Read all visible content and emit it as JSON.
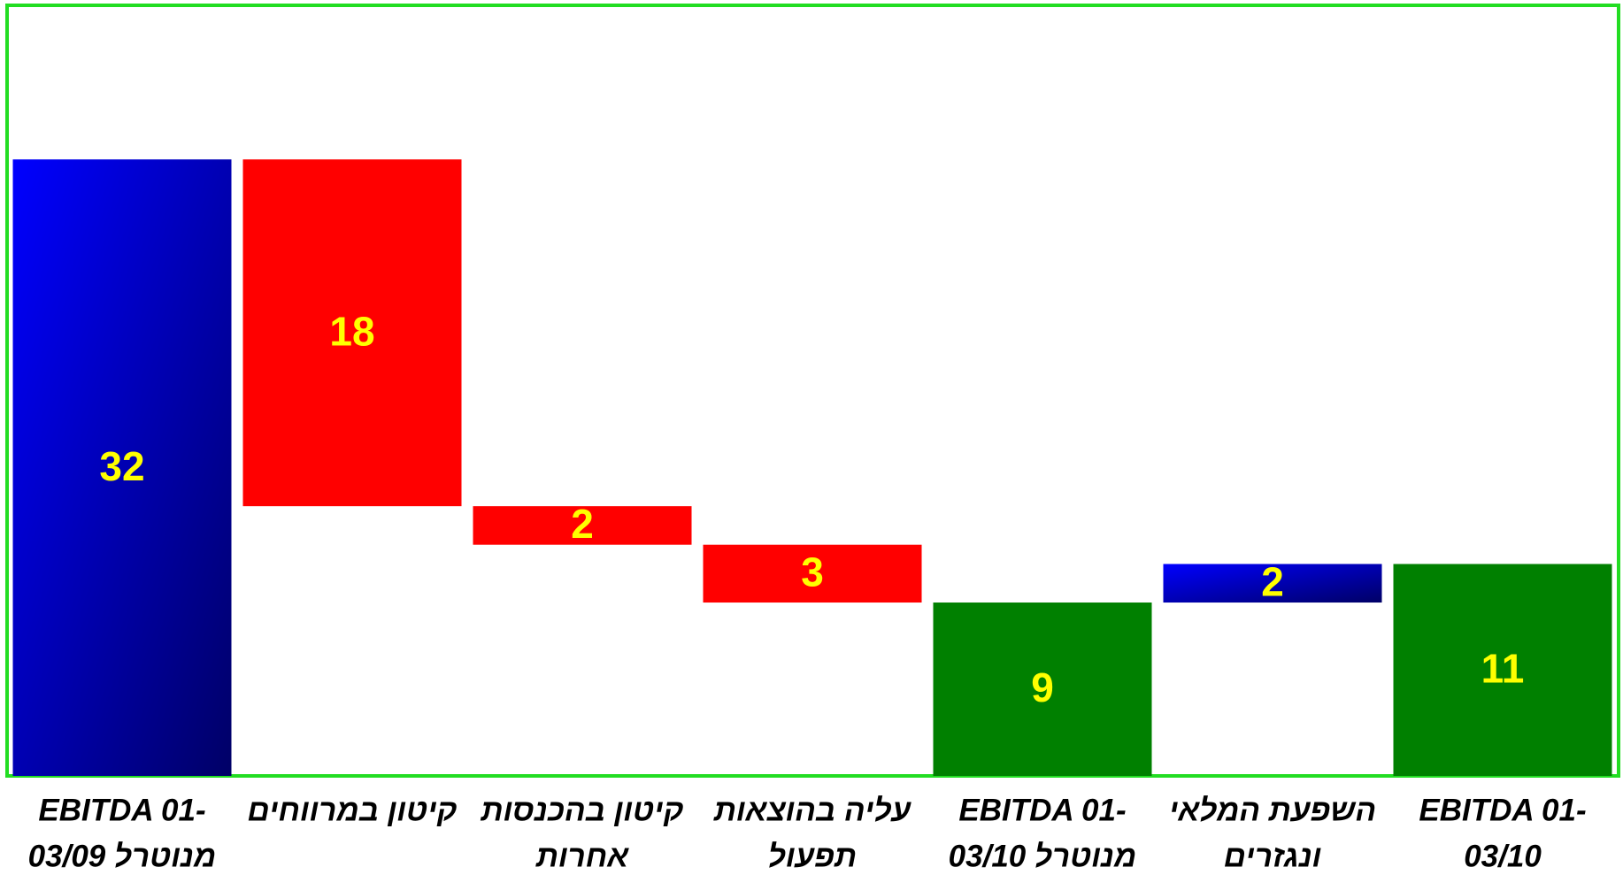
{
  "chart_data": {
    "type": "waterfall",
    "categories": [
      [
        "EBITDA 01-",
        "03/09 מנוטרל"
      ],
      [
        "קיטון במרווחים"
      ],
      [
        "קיטון בהכנסות",
        "אחרות"
      ],
      [
        "עליה בהוצאות",
        "תפעול"
      ],
      [
        "EBITDA  01-",
        "03/10 מנוטרל"
      ],
      [
        "השפעת המלאי",
        "ונגזרים"
      ],
      [
        "EBITDA  01-",
        "03/10"
      ]
    ],
    "measure": [
      "total",
      "relative",
      "relative",
      "relative",
      "total",
      "relative",
      "total"
    ],
    "values": [
      32,
      -18,
      -2,
      -3,
      9,
      2,
      11
    ],
    "value_labels": [
      "32",
      "18",
      "2",
      "3",
      "9",
      "2",
      "11"
    ],
    "colors": [
      "#0000ff",
      "#ff0000",
      "#ff0000",
      "#ff0000",
      "#008000",
      "#0000ff",
      "#008000"
    ],
    "gradient": [
      true,
      false,
      false,
      false,
      false,
      true,
      false
    ],
    "gradient_end": "#000066",
    "label_color": "#ffff00",
    "ylim": [
      0,
      40
    ]
  }
}
